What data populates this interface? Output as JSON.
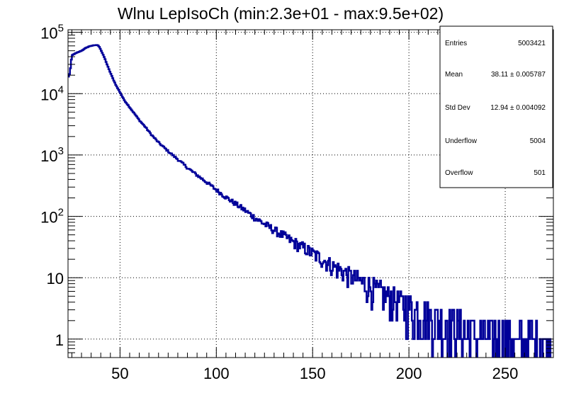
{
  "chart_data": {
    "type": "line",
    "title": "Wlnu LepIsoCh (min:2.3e+01 - max:9.5e+02)",
    "xlabel": "",
    "ylabel": "",
    "xlim": [
      23,
      275
    ],
    "ylim": [
      0.5,
      110000
    ],
    "y_scale": "log",
    "grid": true,
    "x_ticks": [
      {
        "value": 50,
        "label": "50"
      },
      {
        "value": 100,
        "label": "100"
      },
      {
        "value": 150,
        "label": "150"
      },
      {
        "value": 200,
        "label": "200"
      },
      {
        "value": 250,
        "label": "250"
      }
    ],
    "y_ticks": [
      {
        "value": 1,
        "base": "1",
        "exp": ""
      },
      {
        "value": 10,
        "base": "10",
        "exp": ""
      },
      {
        "value": 100,
        "base": "10",
        "exp": "2"
      },
      {
        "value": 1000,
        "base": "10",
        "exp": "3"
      },
      {
        "value": 10000,
        "base": "10",
        "exp": "4"
      },
      {
        "value": 100000,
        "base": "10",
        "exp": "5"
      }
    ],
    "series": [
      {
        "color": "#000099",
        "x": [
          23,
          24,
          25,
          26,
          28,
          30,
          32,
          34,
          36,
          38,
          39,
          40,
          42,
          44,
          46,
          48,
          50,
          52,
          55,
          58,
          60,
          63,
          66,
          70,
          75,
          80,
          85,
          90,
          95,
          100,
          105,
          110,
          115,
          120,
          125,
          130,
          135,
          140,
          145,
          150,
          155,
          160,
          165,
          170,
          175,
          180,
          185,
          190,
          195,
          200,
          205,
          210,
          215,
          220,
          225,
          230,
          235,
          240,
          245,
          250,
          255,
          260,
          265,
          270,
          275
        ],
        "y": [
          18000,
          22000,
          42000,
          44000,
          47000,
          50000,
          55000,
          59000,
          61000,
          62000,
          60000,
          52000,
          38000,
          26000,
          18500,
          13500,
          10500,
          8000,
          6000,
          4500,
          3700,
          2900,
          2200,
          1600,
          1150,
          850,
          620,
          470,
          360,
          270,
          205,
          160,
          125,
          95,
          75,
          60,
          48,
          38,
          31,
          25,
          20,
          16,
          13,
          10.5,
          8.5,
          7,
          5.8,
          4.8,
          4,
          3.3,
          2.8,
          2.4,
          2.1,
          1.8,
          1.6,
          1.4,
          1.25,
          1.1,
          1.0,
          0.95,
          0.9,
          0.85,
          0.8,
          0.75,
          0.7
        ]
      }
    ],
    "stats": [
      {
        "label": "Entries",
        "value": "5003421"
      },
      {
        "label": "Mean",
        "value": "38.11  ± 0.005787"
      },
      {
        "label": "Std Dev",
        "value": "12.94  ± 0.004092"
      },
      {
        "label": "Underflow",
        "value": "5004"
      },
      {
        "label": "Overflow",
        "value": "501"
      }
    ]
  }
}
